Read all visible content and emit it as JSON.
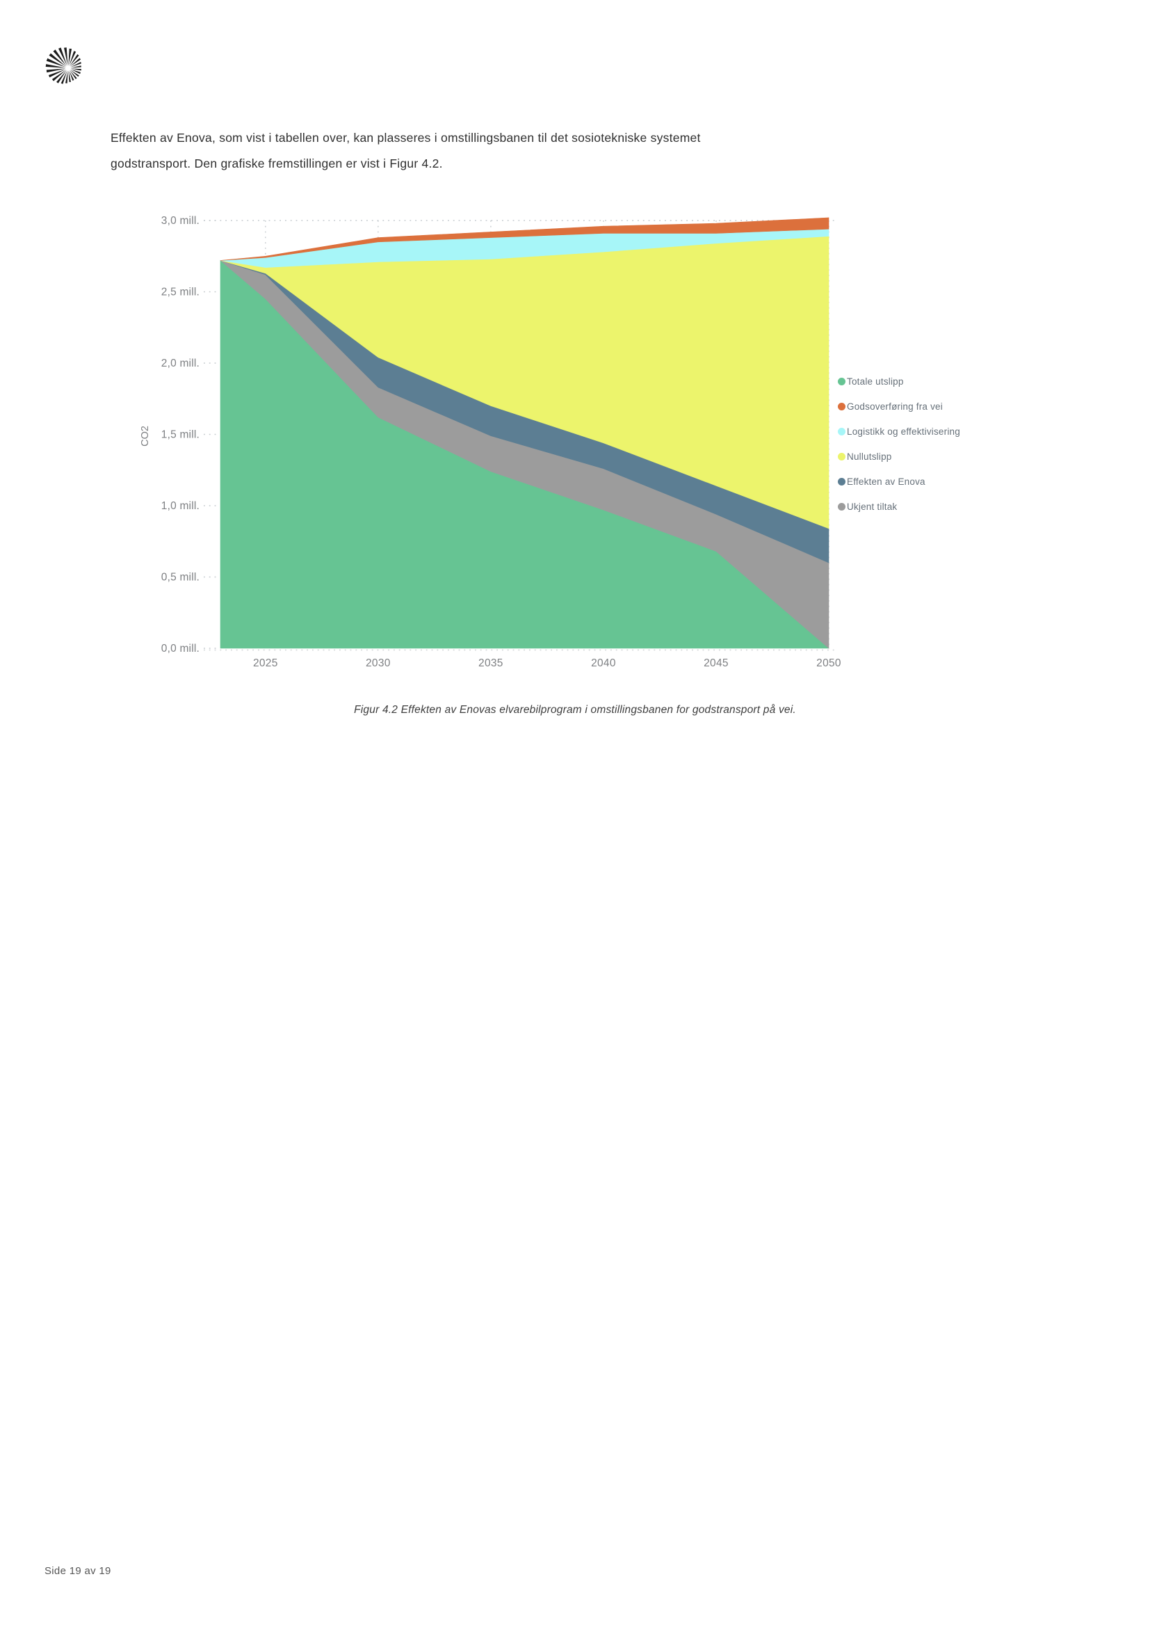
{
  "page": {
    "paragraph_line1": "Effekten av Enova, som vist i tabellen over, kan plasseres i omstillingsbanen til det sosiotekniske systemet",
    "paragraph_line2": "godstransport. Den grafiske fremstillingen er vist i Figur 4.2.",
    "caption": "Figur 4.2 Effekten av Enovas elvarebilprogram i omstillingsbanen for godstransport på vei.",
    "footer": "Side 19 av 19",
    "logo": "enova-starburst-logo"
  },
  "chart_data": {
    "type": "area",
    "stacked": true,
    "title": "",
    "xlabel": "",
    "ylabel": "CO2",
    "unit": "mill.",
    "xlim": [
      2023,
      2050
    ],
    "ylim": [
      0,
      3.0
    ],
    "grid": "dotted",
    "legend_position": "right",
    "x": [
      2023,
      2025,
      2030,
      2035,
      2040,
      2045,
      2050
    ],
    "x_tick_labels": [
      "2025",
      "2030",
      "2035",
      "2040",
      "2045",
      "2050"
    ],
    "x_tick_years": [
      2025,
      2030,
      2035,
      2040,
      2045,
      2050
    ],
    "y_tick_labels": [
      "3,0 mill.",
      "2,5 mill.",
      "2,0 mill.",
      "1,5 mill.",
      "1,0 mill.",
      "0,5 mill.",
      "0,0 mill."
    ],
    "y_tick_values": [
      3.0,
      2.5,
      2.0,
      1.5,
      1.0,
      0.5,
      0.0
    ],
    "series": [
      {
        "name": "Totale utslipp",
        "color": "#66C493",
        "values": [
          2.72,
          2.45,
          1.62,
          1.24,
          0.97,
          0.68,
          0.0
        ]
      },
      {
        "name": "Ukjent tiltak",
        "color": "#9C9C9C",
        "values": [
          0.0,
          0.17,
          0.21,
          0.25,
          0.29,
          0.26,
          0.6
        ]
      },
      {
        "name": "Effekten av Enova",
        "color": "#5C7E93",
        "values": [
          0.0,
          0.01,
          0.21,
          0.21,
          0.18,
          0.2,
          0.24
        ]
      },
      {
        "name": "Nullutslipp",
        "color": "#ECF46C",
        "values": [
          0.0,
          0.04,
          0.67,
          1.03,
          1.34,
          1.7,
          2.05
        ]
      },
      {
        "name": "Logistikk og effektivisering",
        "color": "#A7F6F8",
        "values": [
          0.0,
          0.07,
          0.14,
          0.15,
          0.13,
          0.07,
          0.05
        ]
      },
      {
        "name": "Godsoverføring fra vei",
        "color": "#DC703C",
        "values": [
          0.0,
          0.01,
          0.03,
          0.04,
          0.05,
          0.07,
          0.08
        ]
      }
    ],
    "legend": [
      "Totale utslipp",
      "Godsoverføring fra vei",
      "Logistikk og effektivisering",
      "Nullutslipp",
      "Effekten av Enova",
      "Ukjent tiltak"
    ]
  }
}
